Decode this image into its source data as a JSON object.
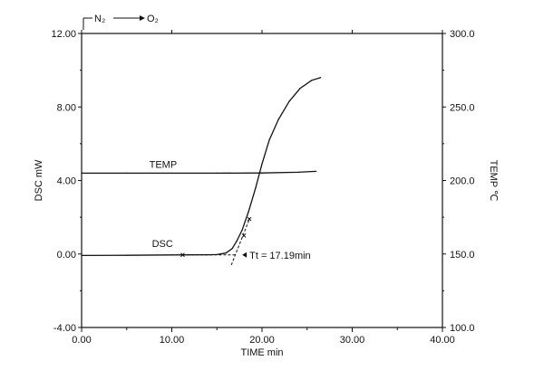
{
  "chart_data": {
    "type": "line",
    "title": "",
    "xlabel": "TIME  min",
    "ylabel_left": "DSC  mW",
    "ylabel_right": "TEMP  ℃",
    "xlim": [
      0,
      40
    ],
    "ylim_left": [
      -4,
      12
    ],
    "ylim_right": [
      100,
      300
    ],
    "x_ticks": [
      "0.00",
      "10.00",
      "20.00",
      "30.00",
      "40.00"
    ],
    "y_left_ticks": [
      "-4.00",
      "0.00",
      "4.00",
      "8.00",
      "12.00"
    ],
    "y_right_ticks": [
      "100.0",
      "150.0",
      "200.0",
      "250.0",
      "300.0"
    ],
    "grid": false,
    "gas_switch": {
      "from": "N₂",
      "to": "O₂"
    },
    "series": [
      {
        "name": "TEMP",
        "axis": "right",
        "x": [
          0,
          5,
          10,
          15,
          20,
          24,
          26
        ],
        "y": [
          205.0,
          205.0,
          205.0,
          205.0,
          205.1,
          205.6,
          206.2
        ]
      },
      {
        "name": "DSC",
        "axis": "left",
        "x": [
          0,
          5,
          10,
          14,
          15,
          16,
          16.7,
          17.2,
          17.8,
          18.5,
          19.3,
          20.0,
          20.8,
          21.8,
          23.0,
          24.2,
          25.5,
          26.5
        ],
        "y": [
          -0.08,
          -0.07,
          -0.05,
          -0.04,
          -0.03,
          0.05,
          0.3,
          0.7,
          1.3,
          2.3,
          3.6,
          4.9,
          6.2,
          7.3,
          8.3,
          9.0,
          9.45,
          9.6
        ]
      }
    ],
    "annotation": {
      "label": "Tt = 17.19min",
      "baseline_x": [
        11.2,
        17.2
      ],
      "baseline_y": -0.05,
      "tangent_x": [
        16.6,
        18.6
      ],
      "tangent_y": [
        -0.6,
        1.9
      ]
    }
  }
}
